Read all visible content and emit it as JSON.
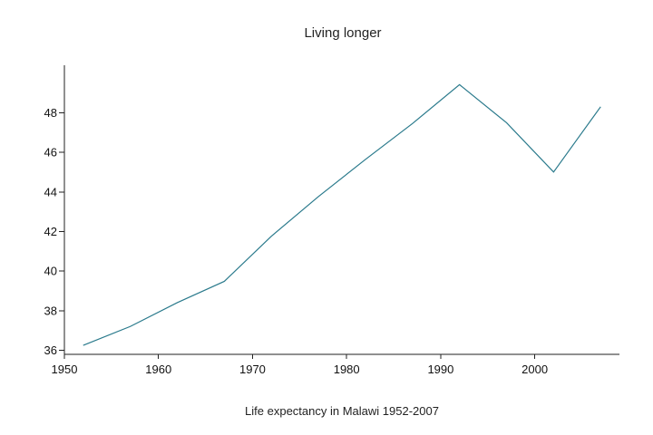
{
  "chart_data": {
    "type": "line",
    "title": "Living longer",
    "xlabel": "Life expectancy in Malawi 1952-2007",
    "ylabel": "",
    "xlim": [
      1950,
      2009
    ],
    "ylim": [
      35.8,
      50.4
    ],
    "xticks": [
      1950,
      1960,
      1970,
      1980,
      1990,
      2000
    ],
    "yticks": [
      36,
      38,
      40,
      42,
      44,
      46,
      48
    ],
    "grid": false,
    "series": [
      {
        "color": "#2a7a8c",
        "x": [
          1952,
          1957,
          1962,
          1967,
          1972,
          1977,
          1982,
          1987,
          1992,
          1997,
          2002,
          2007
        ],
        "values": [
          36.256,
          37.207,
          38.41,
          39.487,
          41.766,
          43.767,
          45.642,
          47.457,
          49.42,
          47.495,
          45.009,
          48.303
        ]
      }
    ]
  }
}
